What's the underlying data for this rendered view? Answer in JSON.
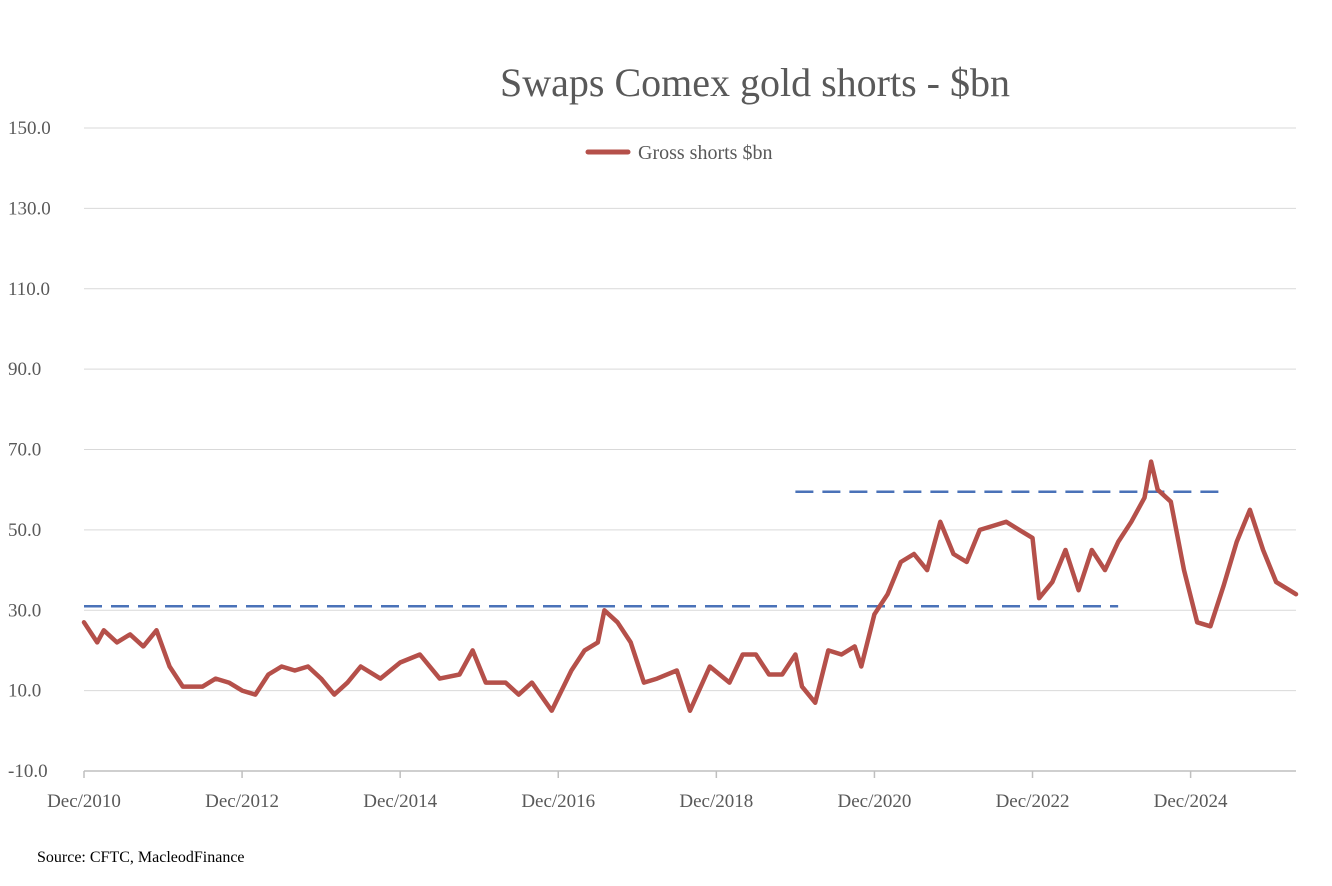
{
  "chart_data": {
    "type": "line",
    "title": "Swaps Comex gold shorts - $bn",
    "source": "Source: CFTC, MacleodFinance",
    "ylim": [
      -10,
      150
    ],
    "xlim": [
      "2010-12",
      "2026-04"
    ],
    "y_ticks": [
      "150.0",
      "130.0",
      "110.0",
      "90.0",
      "70.0",
      "50.0",
      "30.0",
      "10.0",
      "-10.0"
    ],
    "y_tick_values": [
      150,
      130,
      110,
      90,
      70,
      50,
      30,
      10,
      -10
    ],
    "x_ticks": [
      "Dec/2010",
      "Dec/2012",
      "Dec/2014",
      "Dec/2016",
      "Dec/2018",
      "Dec/2020",
      "Dec/2022",
      "Dec/2024"
    ],
    "x_tick_dates": [
      "2010-12",
      "2012-12",
      "2014-12",
      "2016-12",
      "2018-12",
      "2020-12",
      "2022-12",
      "2024-12"
    ],
    "grid": true,
    "legend": "top-center",
    "colors": {
      "series": "#b5504a",
      "reference": "#4a72b8",
      "grid": "#d9d9d9",
      "text": "#595959"
    },
    "series": [
      {
        "name": "Gross shorts $bn",
        "points": [
          [
            "2010-12",
            27
          ],
          [
            "2011-02",
            22
          ],
          [
            "2011-03",
            25
          ],
          [
            "2011-05",
            22
          ],
          [
            "2011-07",
            24
          ],
          [
            "2011-09",
            21
          ],
          [
            "2011-11",
            25
          ],
          [
            "2012-01",
            16
          ],
          [
            "2012-03",
            11
          ],
          [
            "2012-06",
            11
          ],
          [
            "2012-08",
            13
          ],
          [
            "2012-10",
            12
          ],
          [
            "2012-12",
            10
          ],
          [
            "2013-02",
            9
          ],
          [
            "2013-04",
            14
          ],
          [
            "2013-06",
            16
          ],
          [
            "2013-08",
            15
          ],
          [
            "2013-10",
            16
          ],
          [
            "2013-12",
            13
          ],
          [
            "2014-02",
            9
          ],
          [
            "2014-04",
            12
          ],
          [
            "2014-06",
            16
          ],
          [
            "2014-09",
            13
          ],
          [
            "2014-12",
            17
          ],
          [
            "2015-03",
            19
          ],
          [
            "2015-06",
            13
          ],
          [
            "2015-09",
            14
          ],
          [
            "2015-11",
            20
          ],
          [
            "2016-01",
            12
          ],
          [
            "2016-04",
            12
          ],
          [
            "2016-06",
            9
          ],
          [
            "2016-08",
            12
          ],
          [
            "2016-11",
            5
          ],
          [
            "2017-02",
            15
          ],
          [
            "2017-04",
            20
          ],
          [
            "2017-06",
            22
          ],
          [
            "2017-07",
            30
          ],
          [
            "2017-09",
            27
          ],
          [
            "2017-11",
            22
          ],
          [
            "2018-01",
            12
          ],
          [
            "2018-03",
            13
          ],
          [
            "2018-06",
            15
          ],
          [
            "2018-08",
            5
          ],
          [
            "2018-11",
            16
          ],
          [
            "2019-02",
            12
          ],
          [
            "2019-04",
            19
          ],
          [
            "2019-06",
            19
          ],
          [
            "2019-08",
            14
          ],
          [
            "2019-10",
            14
          ],
          [
            "2019-12",
            19
          ],
          [
            "2020-01",
            11
          ],
          [
            "2020-03",
            7
          ],
          [
            "2020-05",
            20
          ],
          [
            "2020-07",
            19
          ],
          [
            "2020-09",
            21
          ],
          [
            "2020-10",
            16
          ],
          [
            "2020-12",
            29
          ],
          [
            "2021-02",
            34
          ],
          [
            "2021-04",
            42
          ],
          [
            "2021-06",
            44
          ],
          [
            "2021-08",
            40
          ],
          [
            "2021-10",
            52
          ],
          [
            "2021-12",
            44
          ],
          [
            "2022-02",
            42
          ],
          [
            "2022-04",
            50
          ],
          [
            "2022-06",
            51
          ],
          [
            "2022-08",
            52
          ],
          [
            "2022-10",
            50
          ],
          [
            "2022-12",
            48
          ],
          [
            "2023-01",
            33
          ],
          [
            "2023-03",
            37
          ],
          [
            "2023-05",
            45
          ],
          [
            "2023-07",
            35
          ],
          [
            "2023-09",
            45
          ],
          [
            "2023-11",
            40
          ],
          [
            "2024-01",
            47
          ],
          [
            "2024-03",
            52
          ],
          [
            "2024-05",
            58
          ],
          [
            "2024-06",
            67
          ],
          [
            "2024-07",
            60
          ],
          [
            "2024-09",
            57
          ],
          [
            "2024-11",
            40
          ],
          [
            "2025-01",
            27
          ],
          [
            "2025-03",
            26
          ],
          [
            "2025-05",
            36
          ],
          [
            "2025-07",
            47
          ],
          [
            "2025-09",
            55
          ],
          [
            "2025-11",
            45
          ],
          [
            "2026-01",
            37
          ],
          [
            "2026-04",
            34
          ]
        ]
      }
    ],
    "reference_lines": [
      {
        "y": 31,
        "from": "2010-12",
        "to": "2024-01"
      },
      {
        "y": 59.5,
        "from": "2019-12",
        "to": "2025-05"
      }
    ]
  }
}
